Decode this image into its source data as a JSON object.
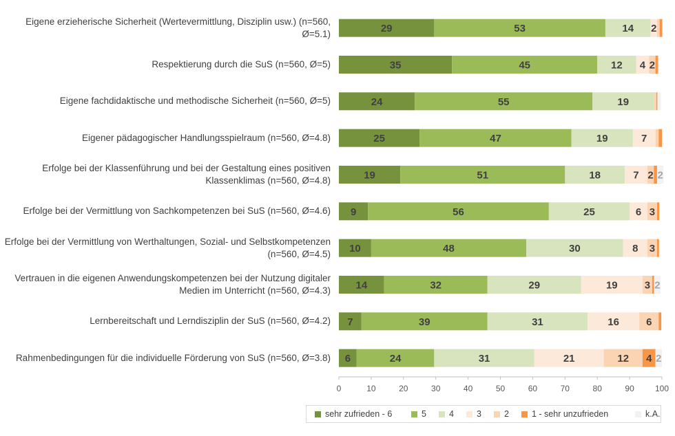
{
  "chart_data": {
    "type": "bar",
    "orientation": "horizontal",
    "stacked": true,
    "xlim": [
      0,
      100
    ],
    "xticks": [
      0,
      10,
      20,
      30,
      40,
      50,
      60,
      70,
      80,
      90,
      100
    ],
    "grid": false,
    "legend_position": "bottom-right",
    "categories": [
      "Eigene erzieherische Sicherheit (Wertevermittlung, Disziplin usw.) (n=560, Ø=5.1)",
      "Respektierung durch die SuS (n=560, Ø=5)",
      "Eigene fachdidaktische und methodische Sicherheit (n=560, Ø=5)",
      "Eigener pädagogischer Handlungsspielraum (n=560, Ø=4.8)",
      "Erfolge bei der Klassenführung und bei der Gestaltung eines positiven Klassenklimas (n=560, Ø=4.8)",
      "Erfolge bei der Vermittlung von Sachkompetenzen bei SuS (n=560, Ø=4.6)",
      "Erfolge bei der Vermittlung von Werthaltungen, Sozial- und Selbstkompetenzen (n=560, Ø=4.5)",
      "Vertrauen in die eigenen Anwendungskompetenzen bei der Nutzung digitaler Medien im Unterricht (n=560, Ø=4.3)",
      "Lernbereitschaft und Lerndisziplin der SuS (n=560, Ø=4.2)",
      "Rahmenbedingungen für die individuelle Förderung von SuS (n=560, Ø=3.8)"
    ],
    "series": [
      {
        "name": "sehr zufrieden - 6",
        "color": "#76923c",
        "values": [
          29.5,
          35,
          23.5,
          25,
          19,
          9,
          10,
          14,
          7,
          5.5
        ]
      },
      {
        "name": "5",
        "color": "#9bbb59",
        "values": [
          53,
          45,
          55,
          47,
          51,
          56,
          48,
          32,
          39,
          24
        ]
      },
      {
        "name": "4",
        "color": "#d7e4bd",
        "values": [
          14,
          12,
          19,
          19,
          18.5,
          25,
          30,
          29,
          31,
          31
        ]
      },
      {
        "name": "3",
        "color": "#fde9d9",
        "values": [
          2,
          4,
          0,
          7,
          7,
          5.5,
          7.5,
          19,
          16,
          21.5
        ]
      },
      {
        "name": "2",
        "color": "#fbd4b4",
        "values": [
          0.8,
          2,
          0.8,
          1,
          2,
          3,
          3,
          3,
          6,
          12
        ]
      },
      {
        "name": "1 - sehr unzufrieden",
        "color": "#f79646",
        "values": [
          0.8,
          0.8,
          0.3,
          1,
          1,
          0.7,
          0.6,
          0.6,
          0.8,
          4
        ]
      },
      {
        "name": "k.A.",
        "color": "#f2f2f2",
        "values": [
          0.1,
          0.4,
          1.1,
          0.2,
          2,
          0,
          0,
          2,
          0.2,
          2
        ]
      }
    ],
    "data_labels": [
      [
        "29",
        "53",
        "14",
        "2",
        "",
        "",
        ""
      ],
      [
        "35",
        "45",
        "12",
        "4",
        "2",
        "",
        ""
      ],
      [
        "24",
        "55",
        "19",
        "",
        "",
        "",
        ""
      ],
      [
        "25",
        "47",
        "19",
        "7",
        "",
        "",
        ""
      ],
      [
        "19",
        "51",
        "18",
        "7",
        "2",
        "",
        "2"
      ],
      [
        "9",
        "56",
        "25",
        "6",
        "3",
        "",
        ""
      ],
      [
        "10",
        "48",
        "30",
        "8",
        "3",
        "",
        ""
      ],
      [
        "14",
        "32",
        "29",
        "19",
        "3",
        "",
        "2"
      ],
      [
        "7",
        "39",
        "31",
        "16",
        "6",
        "",
        ""
      ],
      [
        "6",
        "24",
        "31",
        "21",
        "12",
        "4",
        "2"
      ]
    ]
  }
}
